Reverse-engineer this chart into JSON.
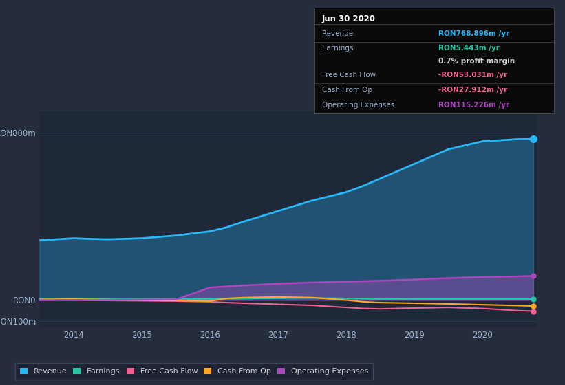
{
  "bg_color": "#252d3d",
  "plot_bg_color": "#1e2838",
  "grid_color": "#2a3548",
  "title_date": "Jun 30 2020",
  "years": [
    2013.5,
    2014.0,
    2014.25,
    2014.5,
    2015.0,
    2015.5,
    2016.0,
    2016.25,
    2016.5,
    2017.0,
    2017.5,
    2018.0,
    2018.25,
    2018.5,
    2019.0,
    2019.5,
    2020.0,
    2020.5,
    2020.75
  ],
  "revenue": [
    285,
    295,
    292,
    290,
    295,
    308,
    328,
    348,
    375,
    425,
    475,
    515,
    545,
    580,
    650,
    720,
    758,
    768,
    769
  ],
  "earnings": [
    5,
    5,
    4,
    4,
    4,
    5,
    5,
    6,
    7,
    9,
    10,
    8,
    6,
    5,
    5,
    5,
    5,
    5,
    5
  ],
  "free_cash_flow": [
    2,
    1,
    0,
    -2,
    -3,
    -5,
    -8,
    -12,
    -15,
    -20,
    -25,
    -35,
    -40,
    -42,
    -38,
    -35,
    -40,
    -50,
    -53
  ],
  "cash_from_op": [
    3,
    4,
    3,
    2,
    0,
    -2,
    -5,
    8,
    12,
    15,
    12,
    0,
    -8,
    -12,
    -15,
    -18,
    -22,
    -26,
    -28
  ],
  "operating_expenses": [
    0,
    0,
    0,
    0,
    2,
    3,
    60,
    65,
    70,
    78,
    84,
    88,
    90,
    92,
    98,
    105,
    110,
    113,
    115
  ],
  "colors": {
    "revenue": "#29b6f6",
    "earnings": "#26c6a6",
    "free_cash_flow": "#f06292",
    "cash_from_op": "#ffa726",
    "operating_expenses": "#ab47bc"
  },
  "ylim_low": -130,
  "ylim_high": 900,
  "xticks": [
    2014,
    2015,
    2016,
    2017,
    2018,
    2019,
    2020
  ],
  "legend_labels": [
    "Revenue",
    "Earnings",
    "Free Cash Flow",
    "Cash From Op",
    "Operating Expenses"
  ],
  "info_rows": [
    {
      "label": "Revenue",
      "value": "RON768.896m /yr",
      "color": "#29b6f6"
    },
    {
      "label": "Earnings",
      "value": "RON5.443m /yr",
      "color": "#26c6a6"
    },
    {
      "label": "",
      "value": "0.7% profit margin",
      "color": "#cccccc"
    },
    {
      "label": "Free Cash Flow",
      "value": "-RON53.031m /yr",
      "color": "#f06292"
    },
    {
      "label": "Cash From Op",
      "value": "-RON27.912m /yr",
      "color": "#f06292"
    },
    {
      "label": "Operating Expenses",
      "value": "RON115.226m /yr",
      "color": "#ab47bc"
    }
  ]
}
